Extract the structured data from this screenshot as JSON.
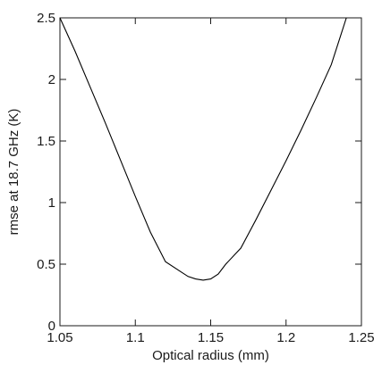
{
  "chart_data": {
    "type": "line",
    "title": "",
    "xlabel": "Optical radius (mm)",
    "ylabel": "rmse at 18.7 GHz (K)",
    "xlim": [
      1.05,
      1.25
    ],
    "ylim": [
      0,
      2.5
    ],
    "x_ticks": [
      1.05,
      1.1,
      1.15,
      1.2,
      1.25
    ],
    "x_tick_labels": [
      "1.05",
      "1.1",
      "1.15",
      "1.2",
      "1.25"
    ],
    "y_ticks": [
      0,
      0.5,
      1,
      1.5,
      2,
      2.5
    ],
    "y_tick_labels": [
      "0",
      "0.5",
      "1",
      "1.5",
      "2",
      "2.5"
    ],
    "grid": false,
    "series": [
      {
        "x": [
          1.05,
          1.06,
          1.07,
          1.08,
          1.09,
          1.1,
          1.11,
          1.12,
          1.13,
          1.135,
          1.14,
          1.145,
          1.15,
          1.155,
          1.16,
          1.17,
          1.18,
          1.19,
          1.2,
          1.21,
          1.22,
          1.23,
          1.24
        ],
        "y": [
          2.5,
          2.23,
          1.94,
          1.65,
          1.35,
          1.05,
          0.76,
          0.52,
          0.44,
          0.4,
          0.38,
          0.37,
          0.38,
          0.42,
          0.5,
          0.63,
          0.86,
          1.1,
          1.34,
          1.59,
          1.85,
          2.12,
          2.5
        ],
        "color": "#000000"
      }
    ]
  }
}
